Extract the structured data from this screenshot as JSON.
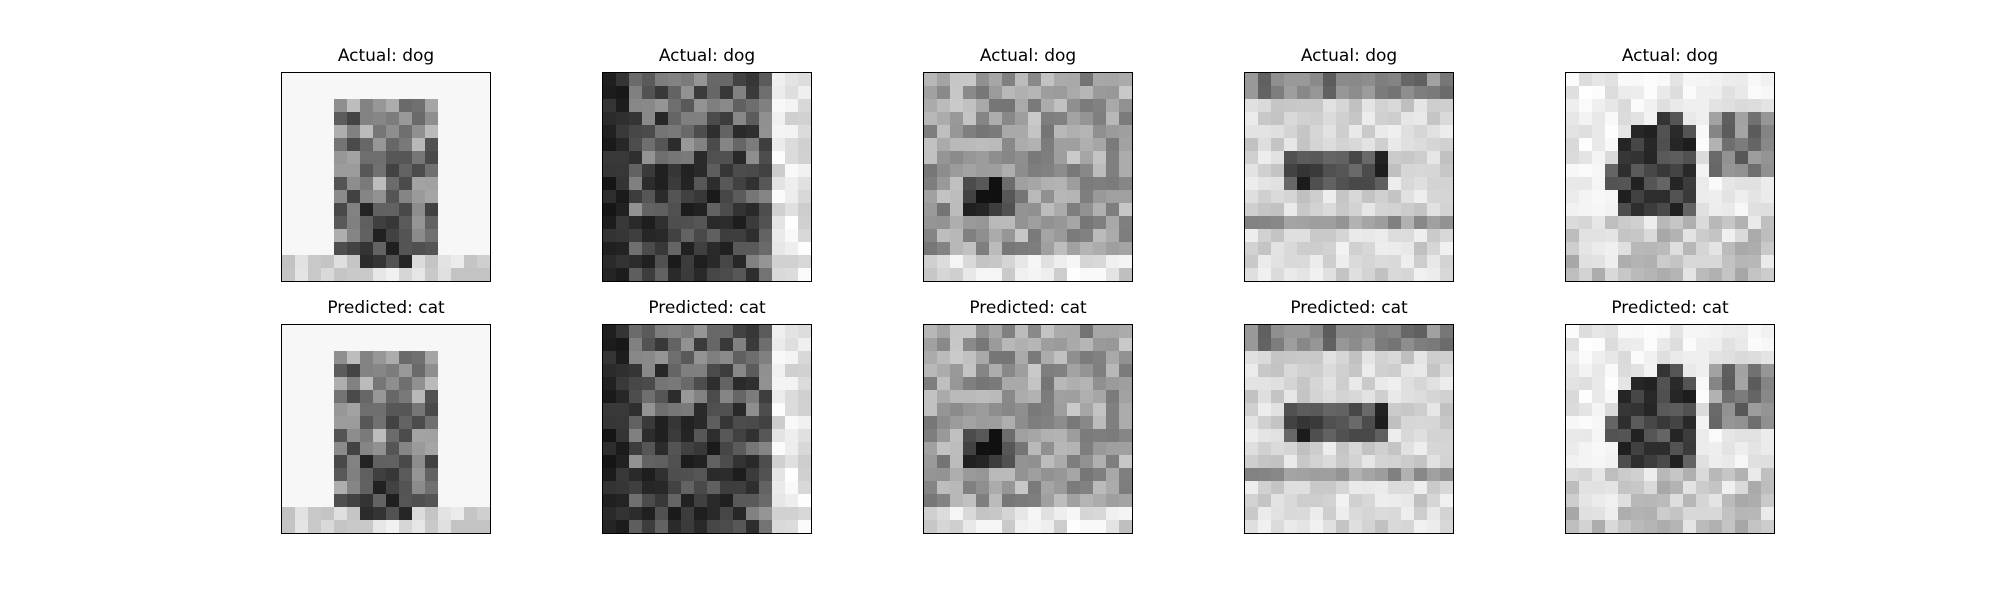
{
  "figure": {
    "background": "#ffffff",
    "rows": [
      {
        "titles": [
          "Actual: dog",
          "Actual: dog",
          "Actual: dog",
          "Actual: dog",
          "Actual: dog"
        ]
      },
      {
        "titles": [
          "Predicted: cat",
          "Predicted: cat",
          "Predicted: cat",
          "Predicted: cat",
          "Predicted: cat"
        ]
      }
    ],
    "image_grid_size": 16,
    "colormap": "grayscale"
  }
}
